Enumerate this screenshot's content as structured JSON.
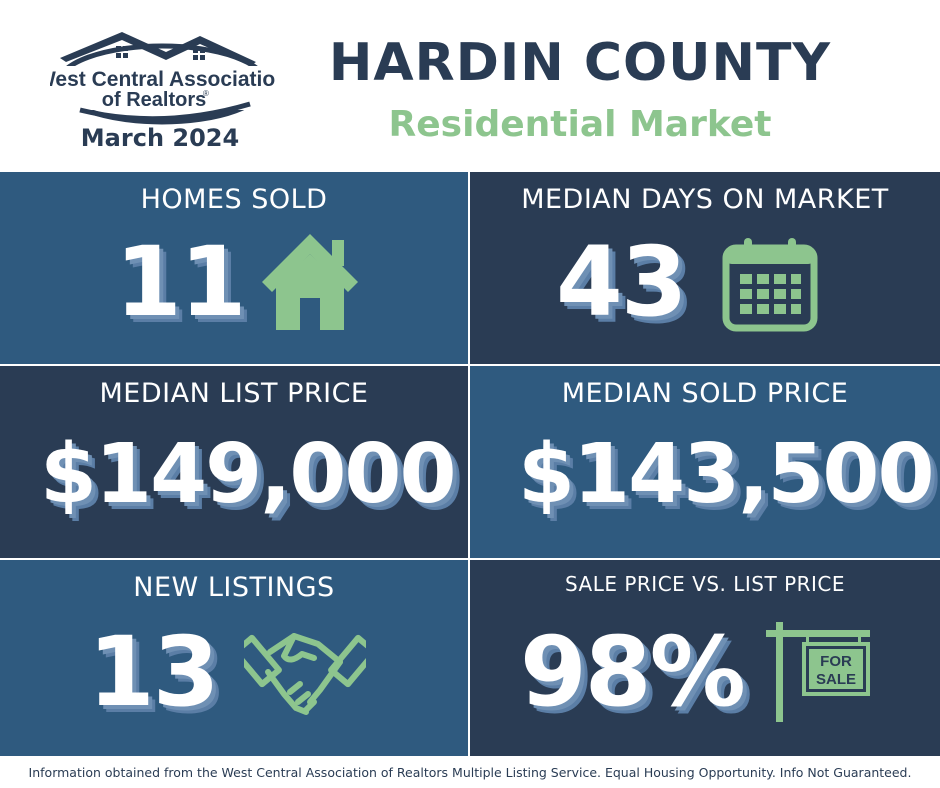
{
  "header": {
    "logo_line1": "West Central Association",
    "logo_line2": "of Realtors",
    "logo_mark": "®",
    "month": "March 2024",
    "title": "HARDIN COUNTY",
    "subtitle": "Residential Market"
  },
  "colors": {
    "navy": "#2a3c54",
    "blue": "#2f5a7f",
    "green": "#8dc58e",
    "white": "#ffffff"
  },
  "tiles": {
    "homes_sold": {
      "label": "HOMES SOLD",
      "value": "11",
      "icon": "house-icon"
    },
    "median_days": {
      "label": "MEDIAN DAYS ON MARKET",
      "value": "43",
      "icon": "calendar-icon"
    },
    "median_list": {
      "label": "MEDIAN LIST PRICE",
      "value": "$149,000"
    },
    "median_sold": {
      "label": "MEDIAN SOLD PRICE",
      "value": "$143,500"
    },
    "new_listings": {
      "label": "NEW LISTINGS",
      "value": "13",
      "icon": "handshake-icon"
    },
    "sale_vs_list": {
      "label": "SALE PRICE VS. LIST PRICE",
      "value": "98%",
      "icon": "for-sale-sign-icon",
      "sign_line1": "FOR",
      "sign_line2": "SALE"
    }
  },
  "footer": {
    "text": "Information obtained from the West Central Association of Realtors Multiple Listing Service. Equal Housing Opportunity. Info Not Guaranteed."
  }
}
